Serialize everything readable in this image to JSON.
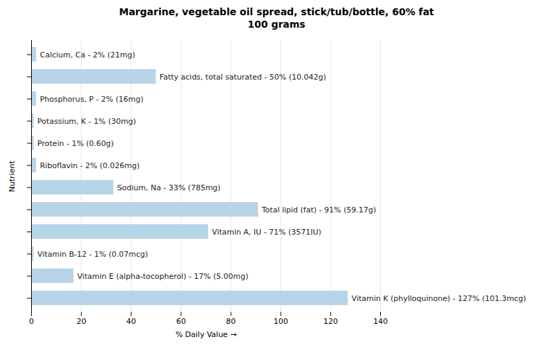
{
  "chart_data": {
    "type": "bar",
    "orientation": "horizontal",
    "title": "Margarine, vegetable oil spread, stick/tub/bottle, 60% fat\n100 grams",
    "xlabel": "% Daily Value",
    "ylabel": "Nutrient",
    "categories": [
      "Calcium, Ca - 2% (21mg)",
      "Fatty acids, total saturated - 50% (10.042g)",
      "Phosphorus, P - 2% (16mg)",
      "Potassium, K - 1% (30mg)",
      "Protein - 1% (0.60g)",
      "Riboflavin - 2% (0.026mg)",
      "Sodium, Na - 33% (785mg)",
      "Total lipid (fat) - 91% (59.17g)",
      "Vitamin A, IU - 71% (3571IU)",
      "Vitamin B-12 - 1% (0.07mcg)",
      "Vitamin E (alpha-tocopherol) - 17% (5.00mg)",
      "Vitamin K (phylloquinone) - 127% (101.3mcg)"
    ],
    "values": [
      2,
      50,
      2,
      1,
      1,
      2,
      33,
      91,
      71,
      1,
      17,
      127
    ],
    "color": "#b8d4e8",
    "xlim": [
      0,
      140
    ],
    "xticks": [
      0,
      20,
      40,
      60,
      80,
      100,
      120,
      140
    ],
    "grid": true,
    "tick_labels": "x"
  }
}
